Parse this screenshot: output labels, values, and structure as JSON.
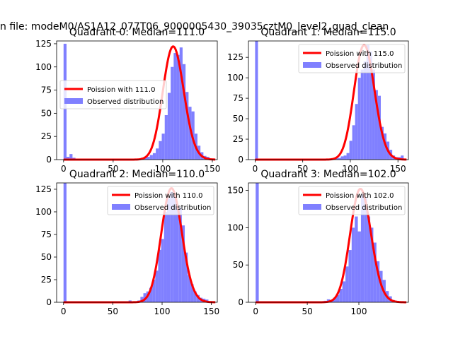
{
  "figure": {
    "suptitle": "n file: modeM0/AS1A12_077T06_9000005430_39035cztM0_level2_quad_clean"
  },
  "chart_data": [
    {
      "type": "histogram+line",
      "title": "Quadrant 0: Median=111.0",
      "xlim": [
        -7,
        155
      ],
      "ylim": [
        0,
        128
      ],
      "xticks": [
        0,
        50,
        100,
        150
      ],
      "yticks": [
        0,
        25,
        50,
        75,
        100,
        125
      ],
      "legend_position": "center-left",
      "series": [
        {
          "name": "Poission with 111.0",
          "kind": "line",
          "color": "#ff0000",
          "mean": 111.0,
          "peak": 122
        },
        {
          "name": "Observed distribution",
          "kind": "bar",
          "color": "#8080ff",
          "bin_width": 3.0,
          "bins": [
            [
              0,
              125
            ],
            [
              3,
              3
            ],
            [
              6,
              6
            ],
            [
              9,
              2
            ],
            [
              12,
              1
            ],
            [
              15,
              1
            ],
            [
              18,
              1
            ],
            [
              21,
              1
            ],
            [
              24,
              1
            ],
            [
              27,
              1
            ],
            [
              30,
              1
            ],
            [
              33,
              1
            ],
            [
              36,
              1
            ],
            [
              39,
              1
            ],
            [
              42,
              1
            ],
            [
              45,
              1
            ],
            [
              48,
              1
            ],
            [
              51,
              1
            ],
            [
              54,
              1
            ],
            [
              57,
              1
            ],
            [
              60,
              1
            ],
            [
              63,
              1
            ],
            [
              66,
              1
            ],
            [
              69,
              1
            ],
            [
              72,
              1
            ],
            [
              75,
              1
            ],
            [
              78,
              2
            ],
            [
              81,
              3
            ],
            [
              84,
              3
            ],
            [
              87,
              5
            ],
            [
              90,
              7
            ],
            [
              93,
              12
            ],
            [
              96,
              20
            ],
            [
              99,
              28
            ],
            [
              102,
              48
            ],
            [
              105,
              72
            ],
            [
              108,
              100
            ],
            [
              111,
              115
            ],
            [
              114,
              113
            ],
            [
              117,
              121
            ],
            [
              120,
              103
            ],
            [
              123,
              73
            ],
            [
              126,
              57
            ],
            [
              129,
              52
            ],
            [
              132,
              28
            ],
            [
              135,
              15
            ],
            [
              138,
              8
            ],
            [
              141,
              4
            ],
            [
              144,
              3
            ],
            [
              147,
              1
            ]
          ]
        }
      ]
    },
    {
      "type": "histogram+line",
      "title": "Quadrant 1: Median=115.0",
      "xlim": [
        -7,
        161
      ],
      "ylim": [
        0,
        145
      ],
      "xticks": [
        0,
        50,
        100,
        150
      ],
      "yticks": [
        0,
        25,
        50,
        75,
        100,
        125
      ],
      "legend_position": "top-right",
      "series": [
        {
          "name": "Poission with 115.0",
          "kind": "line",
          "color": "#ff0000",
          "mean": 115.0,
          "peak": 140
        },
        {
          "name": "Observed distribution",
          "kind": "bar",
          "color": "#8080ff",
          "bin_width": 3.0,
          "bins": [
            [
              0,
              145
            ],
            [
              3,
              1
            ],
            [
              6,
              1
            ],
            [
              9,
              1
            ],
            [
              12,
              1
            ],
            [
              15,
              1
            ],
            [
              18,
              1
            ],
            [
              21,
              1
            ],
            [
              24,
              1
            ],
            [
              27,
              1
            ],
            [
              30,
              1
            ],
            [
              33,
              1
            ],
            [
              36,
              1
            ],
            [
              39,
              1
            ],
            [
              42,
              1
            ],
            [
              45,
              1
            ],
            [
              48,
              1
            ],
            [
              51,
              1
            ],
            [
              54,
              1
            ],
            [
              57,
              1
            ],
            [
              60,
              1
            ],
            [
              63,
              1
            ],
            [
              66,
              1
            ],
            [
              69,
              1
            ],
            [
              72,
              1
            ],
            [
              75,
              1
            ],
            [
              78,
              1
            ],
            [
              81,
              1
            ],
            [
              84,
              3
            ],
            [
              87,
              2
            ],
            [
              90,
              4
            ],
            [
              93,
              5
            ],
            [
              96,
              8
            ],
            [
              99,
              23
            ],
            [
              102,
              42
            ],
            [
              105,
              68
            ],
            [
              108,
              100
            ],
            [
              111,
              110
            ],
            [
              114,
              120
            ],
            [
              117,
              140
            ],
            [
              120,
              132
            ],
            [
              123,
              110
            ],
            [
              126,
              85
            ],
            [
              129,
              78
            ],
            [
              132,
              40
            ],
            [
              135,
              32
            ],
            [
              138,
              22
            ],
            [
              141,
              12
            ],
            [
              144,
              5
            ],
            [
              147,
              3
            ],
            [
              150,
              3
            ],
            [
              153,
              5
            ]
          ]
        }
      ]
    },
    {
      "type": "histogram+line",
      "title": "Quadrant 2: Median=110.0",
      "xlim": [
        -7,
        156
      ],
      "ylim": [
        0,
        132
      ],
      "xticks": [
        0,
        50,
        100,
        150
      ],
      "yticks": [
        0,
        25,
        50,
        75,
        100,
        125
      ],
      "legend_position": "top-right",
      "series": [
        {
          "name": "Poission with 110.0",
          "kind": "line",
          "color": "#ff0000",
          "mean": 110.0,
          "peak": 126
        },
        {
          "name": "Observed distribution",
          "kind": "bar",
          "color": "#8080ff",
          "bin_width": 3.0,
          "bins": [
            [
              0,
              132
            ],
            [
              3,
              1
            ],
            [
              6,
              1
            ],
            [
              9,
              1
            ],
            [
              12,
              1
            ],
            [
              15,
              1
            ],
            [
              18,
              1
            ],
            [
              21,
              1
            ],
            [
              24,
              1
            ],
            [
              27,
              1
            ],
            [
              30,
              1
            ],
            [
              33,
              1
            ],
            [
              36,
              1
            ],
            [
              39,
              1
            ],
            [
              42,
              1
            ],
            [
              45,
              1
            ],
            [
              48,
              1
            ],
            [
              51,
              1
            ],
            [
              54,
              1
            ],
            [
              57,
              1
            ],
            [
              60,
              1
            ],
            [
              63,
              1
            ],
            [
              66,
              2
            ],
            [
              69,
              1
            ],
            [
              72,
              1
            ],
            [
              75,
              2
            ],
            [
              78,
              6
            ],
            [
              81,
              10
            ],
            [
              84,
              12
            ],
            [
              87,
              16
            ],
            [
              90,
              25
            ],
            [
              93,
              35
            ],
            [
              96,
              58
            ],
            [
              99,
              70
            ],
            [
              102,
              100
            ],
            [
              105,
              115
            ],
            [
              108,
              122
            ],
            [
              111,
              120
            ],
            [
              114,
              108
            ],
            [
              117,
              105
            ],
            [
              120,
              85
            ],
            [
              123,
              55
            ],
            [
              126,
              30
            ],
            [
              129,
              20
            ],
            [
              132,
              12
            ],
            [
              135,
              8
            ],
            [
              138,
              5
            ],
            [
              141,
              4
            ],
            [
              144,
              3
            ],
            [
              147,
              1
            ]
          ]
        }
      ]
    },
    {
      "type": "histogram+line",
      "title": "Quadrant 3: Median=102.0",
      "xlim": [
        -7,
        148
      ],
      "ylim": [
        0,
        160
      ],
      "xticks": [
        0,
        50,
        100
      ],
      "yticks": [
        0,
        50,
        100,
        150
      ],
      "legend_position": "top-right",
      "series": [
        {
          "name": "Poission with 102.0",
          "kind": "line",
          "color": "#ff0000",
          "mean": 102.0,
          "peak": 152
        },
        {
          "name": "Observed distribution",
          "kind": "bar",
          "color": "#8080ff",
          "bin_width": 3.0,
          "bins": [
            [
              0,
              160
            ],
            [
              3,
              1
            ],
            [
              6,
              1
            ],
            [
              9,
              1
            ],
            [
              12,
              1
            ],
            [
              15,
              1
            ],
            [
              18,
              1
            ],
            [
              21,
              1
            ],
            [
              24,
              1
            ],
            [
              27,
              1
            ],
            [
              30,
              1
            ],
            [
              33,
              1
            ],
            [
              36,
              1
            ],
            [
              39,
              1
            ],
            [
              42,
              1
            ],
            [
              45,
              1
            ],
            [
              48,
              1
            ],
            [
              51,
              1
            ],
            [
              54,
              1
            ],
            [
              57,
              1
            ],
            [
              60,
              1
            ],
            [
              63,
              1
            ],
            [
              66,
              2
            ],
            [
              69,
              4
            ],
            [
              72,
              3
            ],
            [
              75,
              6
            ],
            [
              78,
              10
            ],
            [
              81,
              18
            ],
            [
              84,
              28
            ],
            [
              87,
              48
            ],
            [
              90,
              70
            ],
            [
              93,
              100
            ],
            [
              96,
              115
            ],
            [
              99,
              95
            ],
            [
              102,
              145
            ],
            [
              105,
              140
            ],
            [
              108,
              115
            ],
            [
              111,
              100
            ],
            [
              114,
              80
            ],
            [
              117,
              55
            ],
            [
              120,
              42
            ],
            [
              123,
              30
            ],
            [
              126,
              15
            ],
            [
              129,
              8
            ],
            [
              132,
              3
            ],
            [
              135,
              2
            ]
          ]
        }
      ]
    }
  ]
}
